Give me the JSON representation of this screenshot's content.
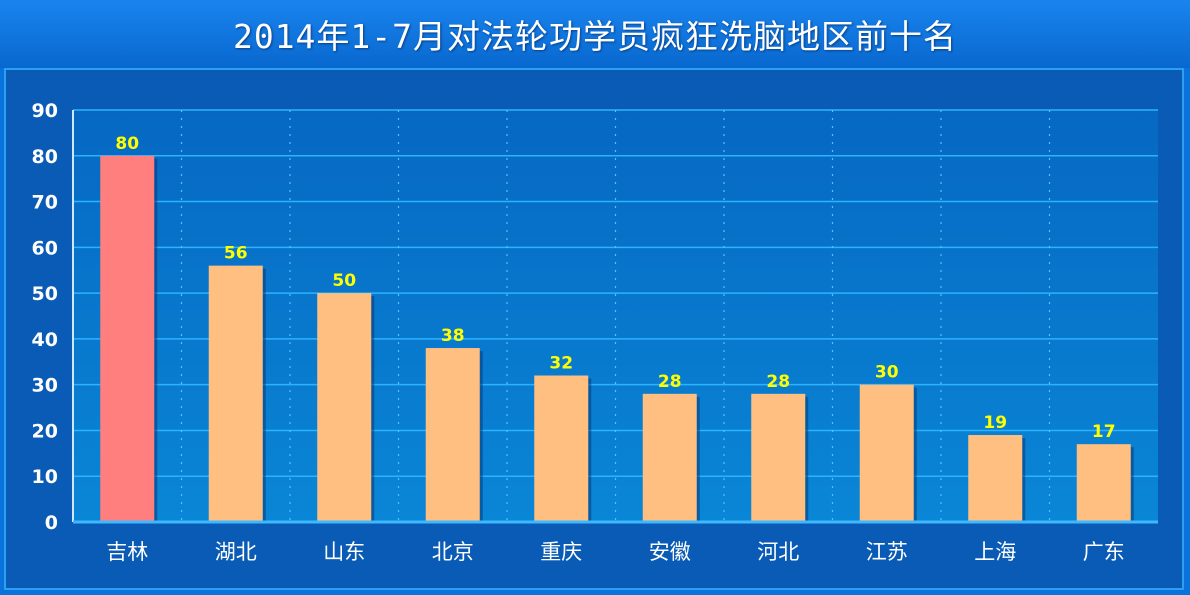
{
  "title": "2014年1-7月对法轮功学员疯狂洗脑地区前十名",
  "chart_data": {
    "type": "bar",
    "title": "2014年1-7月对法轮功学员疯狂洗脑地区前十名",
    "xlabel": "",
    "ylabel": "",
    "categories": [
      "吉林",
      "湖北",
      "山东",
      "北京",
      "重庆",
      "安徽",
      "河北",
      "江苏",
      "上海",
      "广东"
    ],
    "values": [
      80,
      56,
      50,
      38,
      32,
      28,
      28,
      30,
      19,
      17
    ],
    "ylim": [
      0,
      90
    ],
    "yticks": [
      0,
      10,
      20,
      30,
      40,
      50,
      60,
      70,
      80,
      90
    ],
    "grid": true,
    "legend": "none",
    "colors": {
      "highlight_bar": "#ff7f7f",
      "bar": "#ffbf80",
      "data_label": "#ffff00",
      "plot_background": "#0a7ad0",
      "gridline": "#2ab4ff",
      "axis_text": "#ffffff"
    }
  }
}
